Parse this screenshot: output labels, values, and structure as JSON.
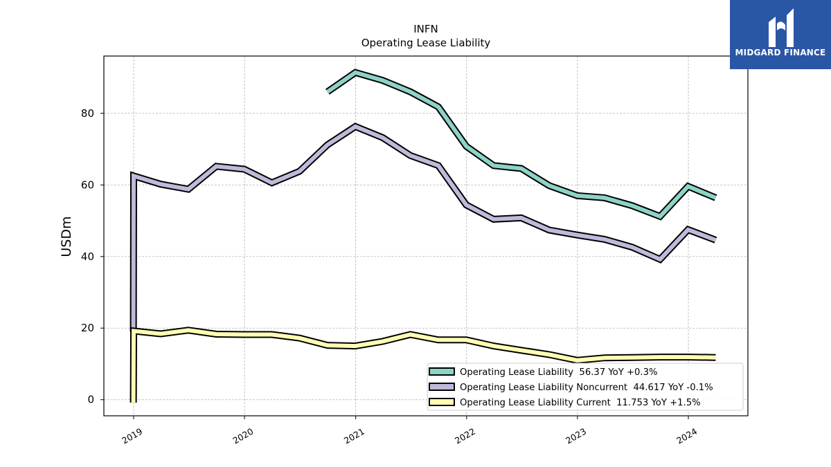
{
  "chart_data": {
    "type": "line",
    "title": "INFN",
    "subtitle": "Operating Lease Liability",
    "ylabel": "USDm",
    "xlabel": "",
    "ylim": [
      -4.5,
      96
    ],
    "yticks": [
      0,
      20,
      40,
      60,
      80
    ],
    "xlim": [
      "2018-09-25",
      "2024-07-15"
    ],
    "xticks": [
      "2019",
      "2020",
      "2021",
      "2022",
      "2023",
      "2024"
    ],
    "grid": true,
    "legend_position": "lower-right",
    "series": [
      {
        "name": "Operating Lease Liability  56.37 YoY +0.3%",
        "color": "#8dd3c7",
        "points": [
          [
            "2020-09-30",
            86.0
          ],
          [
            "2020-12-31",
            91.4
          ],
          [
            "2021-03-31",
            89.2
          ],
          [
            "2021-06-30",
            86.0
          ],
          [
            "2021-09-30",
            81.8
          ],
          [
            "2021-12-31",
            70.8
          ],
          [
            "2022-03-31",
            65.4
          ],
          [
            "2022-06-30",
            64.6
          ],
          [
            "2022-09-30",
            59.8
          ],
          [
            "2022-12-31",
            57.0
          ],
          [
            "2023-03-31",
            56.4
          ],
          [
            "2023-06-30",
            54.2
          ],
          [
            "2023-09-30",
            51.2
          ],
          [
            "2023-12-31",
            59.6
          ],
          [
            "2024-03-31",
            56.4
          ]
        ]
      },
      {
        "name": "Operating Lease Liability Noncurrent  44.617 YoY -0.1%",
        "color": "#bebada",
        "points": [
          [
            "2018-12-31",
            19.0
          ],
          [
            "2019-01-01",
            62.5
          ],
          [
            "2019-03-31",
            60.2
          ],
          [
            "2019-06-30",
            58.8
          ],
          [
            "2019-09-30",
            65.2
          ],
          [
            "2019-12-31",
            64.4
          ],
          [
            "2020-03-31",
            60.6
          ],
          [
            "2020-06-30",
            63.8
          ],
          [
            "2020-09-30",
            71.2
          ],
          [
            "2020-12-31",
            76.3
          ],
          [
            "2021-03-31",
            73.2
          ],
          [
            "2021-06-30",
            68.2
          ],
          [
            "2021-09-30",
            65.4
          ],
          [
            "2021-12-31",
            54.4
          ],
          [
            "2022-03-31",
            50.4
          ],
          [
            "2022-06-30",
            50.8
          ],
          [
            "2022-09-30",
            47.4
          ],
          [
            "2022-12-31",
            46.0
          ],
          [
            "2023-03-31",
            44.8
          ],
          [
            "2023-06-30",
            42.6
          ],
          [
            "2023-09-30",
            39.2
          ],
          [
            "2023-12-31",
            47.5
          ],
          [
            "2024-03-31",
            44.6
          ]
        ]
      },
      {
        "name": "Operating Lease Liability Current  11.753 YoY +1.5%",
        "color": "#ffffb3",
        "points": [
          [
            "2018-12-31",
            -0.8
          ],
          [
            "2019-01-01",
            19.2
          ],
          [
            "2019-03-31",
            18.4
          ],
          [
            "2019-06-30",
            19.4
          ],
          [
            "2019-09-30",
            18.3
          ],
          [
            "2019-12-31",
            18.2
          ],
          [
            "2020-03-31",
            18.2
          ],
          [
            "2020-06-30",
            17.2
          ],
          [
            "2020-09-30",
            15.2
          ],
          [
            "2020-12-31",
            15.0
          ],
          [
            "2021-03-31",
            16.3
          ],
          [
            "2021-06-30",
            18.2
          ],
          [
            "2021-09-30",
            16.7
          ],
          [
            "2021-12-31",
            16.7
          ],
          [
            "2022-03-31",
            15.0
          ],
          [
            "2022-06-30",
            13.8
          ],
          [
            "2022-09-30",
            12.6
          ],
          [
            "2022-12-31",
            11.0
          ],
          [
            "2023-03-31",
            11.7
          ],
          [
            "2023-06-30",
            11.8
          ],
          [
            "2023-09-30",
            11.9
          ],
          [
            "2023-12-31",
            11.9
          ],
          [
            "2024-03-31",
            11.8
          ]
        ]
      }
    ]
  },
  "logo": {
    "text": "MIDGARD FINANCE",
    "color": "#2a56a6"
  }
}
